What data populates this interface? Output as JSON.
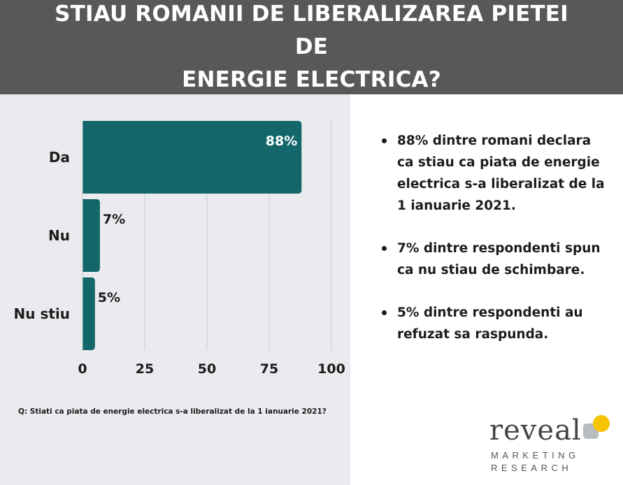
{
  "header": {
    "title_line1": "STIAU ROMANII DE LIBERALIZAREA PIETEI DE",
    "title_line2": "ENERGIE ELECTRICA?"
  },
  "chart_data": {
    "type": "bar",
    "orientation": "horizontal",
    "categories": [
      "Da",
      "Nu",
      "Nu stiu"
    ],
    "values": [
      88,
      7,
      5
    ],
    "value_labels": [
      "88%",
      "7%",
      "5%"
    ],
    "xlim": [
      0,
      100
    ],
    "xticks": [
      0,
      25,
      50,
      75,
      100
    ],
    "grid": true,
    "bar_color": "#13676a"
  },
  "question": "Q: Stiati ca piata de energie electrica s-a liberalizat de la 1 ianuarie 2021?",
  "bullets": [
    "88% dintre romani declara ca stiau ca piata de energie electrica s-a liberalizat de la 1 ianuarie 2021.",
    "7% dintre respondenti spun ca nu stiau de schimbare.",
    "5% dintre respondenti au refuzat sa raspunda."
  ],
  "logo": {
    "word": "reveal",
    "line1": "MARKETING",
    "line2": "RESEARCH"
  },
  "colors": {
    "header_bg": "#585858",
    "panel_bg": "#e9ebee",
    "bar": "#13676a",
    "logo_yellow": "#f6c400"
  }
}
